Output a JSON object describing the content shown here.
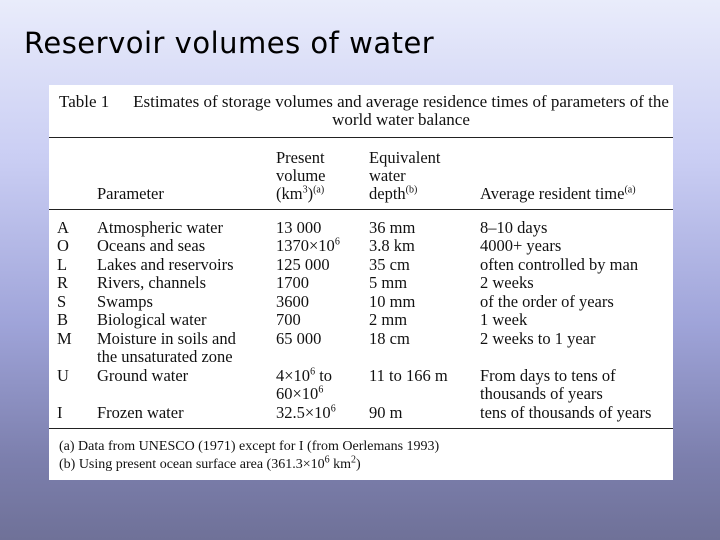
{
  "slide": {
    "title": "Reservoir volumes of water"
  },
  "table": {
    "label": "Table 1",
    "caption": "Estimates of storage volumes and average residence times of parameters of the world water balance",
    "headers": {
      "parameter": "Parameter",
      "volume_line1": "Present",
      "volume_line2": "volume",
      "volume_unit": "(km",
      "volume_unit_sup": "3",
      "volume_unit_close": ")",
      "volume_note": "(a)",
      "depth_line1": "Equivalent",
      "depth_line2": "water",
      "depth_line3": "depth",
      "depth_note": "(b)",
      "time": "Average resident time",
      "time_note": "(a)"
    },
    "rows": [
      {
        "code": "A",
        "parameter": "Atmospheric water",
        "volume": "13 000",
        "depth": "36 mm",
        "time": "8–10 days"
      },
      {
        "code": "O",
        "parameter": "Oceans and seas",
        "volume": "1370×10",
        "volume_sup": "6",
        "depth": "3.8 km",
        "time": "4000+ years"
      },
      {
        "code": "L",
        "parameter": "Lakes and reservoirs",
        "volume": "125 000",
        "depth": "35 cm",
        "time": "often controlled by man"
      },
      {
        "code": "R",
        "parameter": "Rivers, channels",
        "volume": "1700",
        "depth": "5 mm",
        "time": "2 weeks"
      },
      {
        "code": "S",
        "parameter": "Swamps",
        "volume": "3600",
        "depth": "10 mm",
        "time": "of the order of years"
      },
      {
        "code": "B",
        "parameter": "Biological water",
        "volume": "700",
        "depth": "2 mm",
        "time": "1 week"
      },
      {
        "code": "M",
        "parameter": "Moisture in soils and",
        "parameter_line2": "the unsaturated zone",
        "volume": "65 000",
        "depth": "18 cm",
        "time": "2 weeks to 1 year"
      },
      {
        "code": "U",
        "parameter": "Ground water",
        "volume": "4×10",
        "volume_sup": "6",
        "volume_tail": " to",
        "volume_line2": "60×10",
        "volume_line2_sup": "6",
        "depth": "11 to 166 m",
        "time": "From days to tens of",
        "time_line2": "thousands of years"
      },
      {
        "code": "I",
        "parameter": "Frozen water",
        "volume": "32.5×10",
        "volume_sup": "6",
        "depth": "90 m",
        "time": "tens of thousands of years"
      }
    ],
    "footnotes": {
      "a": "(a)  Data from UNESCO (1971) except for I (from Oerlemans 1993)",
      "b_prefix": "(b)  Using present ocean surface area (361.3×10",
      "b_sup1": "6",
      "b_mid": " km",
      "b_sup2": "2",
      "b_suffix": ")"
    }
  }
}
